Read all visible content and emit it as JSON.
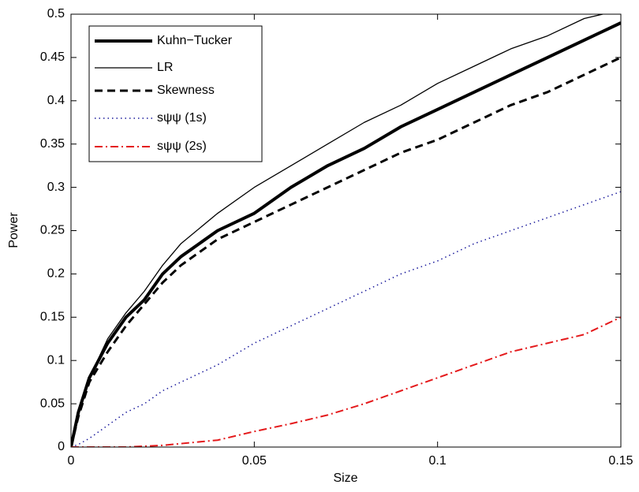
{
  "chart_data": {
    "type": "line",
    "x_label": "Size",
    "y_label": "Power",
    "x": [
      0,
      0.002,
      0.005,
      0.01,
      0.015,
      0.02,
      0.025,
      0.03,
      0.04,
      0.05,
      0.06,
      0.07,
      0.08,
      0.09,
      0.1,
      0.11,
      0.12,
      0.13,
      0.14,
      0.15
    ],
    "series": [
      {
        "name": "Kuhn−Tucker",
        "color": "#000000",
        "style": "solid",
        "linewidth": 4,
        "values": [
          0,
          0.04,
          0.08,
          0.12,
          0.15,
          0.17,
          0.2,
          0.22,
          0.25,
          0.27,
          0.3,
          0.325,
          0.345,
          0.37,
          0.39,
          0.41,
          0.43,
          0.45,
          0.47,
          0.49
        ]
      },
      {
        "name": "LR",
        "color": "#000000",
        "style": "solid",
        "linewidth": 1.3,
        "values": [
          0,
          0.04,
          0.08,
          0.125,
          0.155,
          0.18,
          0.21,
          0.235,
          0.27,
          0.3,
          0.325,
          0.35,
          0.375,
          0.395,
          0.42,
          0.44,
          0.46,
          0.475,
          0.495,
          0.505
        ]
      },
      {
        "name": "Skewness",
        "color": "#000000",
        "style": "dashed",
        "linewidth": 3,
        "values": [
          0,
          0.035,
          0.075,
          0.11,
          0.14,
          0.165,
          0.19,
          0.21,
          0.24,
          0.26,
          0.28,
          0.3,
          0.32,
          0.34,
          0.355,
          0.375,
          0.395,
          0.41,
          0.43,
          0.45
        ]
      },
      {
        "name": "sψψ (1s)",
        "color": "#1a1a9c",
        "style": "dotted",
        "linewidth": 1.5,
        "values": [
          0,
          0.003,
          0.01,
          0.025,
          0.04,
          0.05,
          0.065,
          0.075,
          0.095,
          0.12,
          0.14,
          0.16,
          0.18,
          0.2,
          0.215,
          0.235,
          0.25,
          0.265,
          0.28,
          0.295
        ]
      },
      {
        "name": "sψψ (2s)",
        "color": "#e41a1c",
        "style": "dashdot",
        "linewidth": 2,
        "values": [
          0,
          0,
          0,
          0,
          0,
          0.001,
          0.002,
          0.004,
          0.008,
          0.018,
          0.027,
          0.037,
          0.05,
          0.065,
          0.08,
          0.095,
          0.11,
          0.12,
          0.13,
          0.15
        ]
      }
    ],
    "xlim": [
      0,
      0.15
    ],
    "ylim": [
      0,
      0.5
    ],
    "xticks": [
      0,
      0.05,
      0.1,
      0.15
    ],
    "yticks": [
      0,
      0.05,
      0.1,
      0.15,
      0.2,
      0.25,
      0.3,
      0.35,
      0.4,
      0.45,
      0.5
    ],
    "legend": "upper left"
  }
}
